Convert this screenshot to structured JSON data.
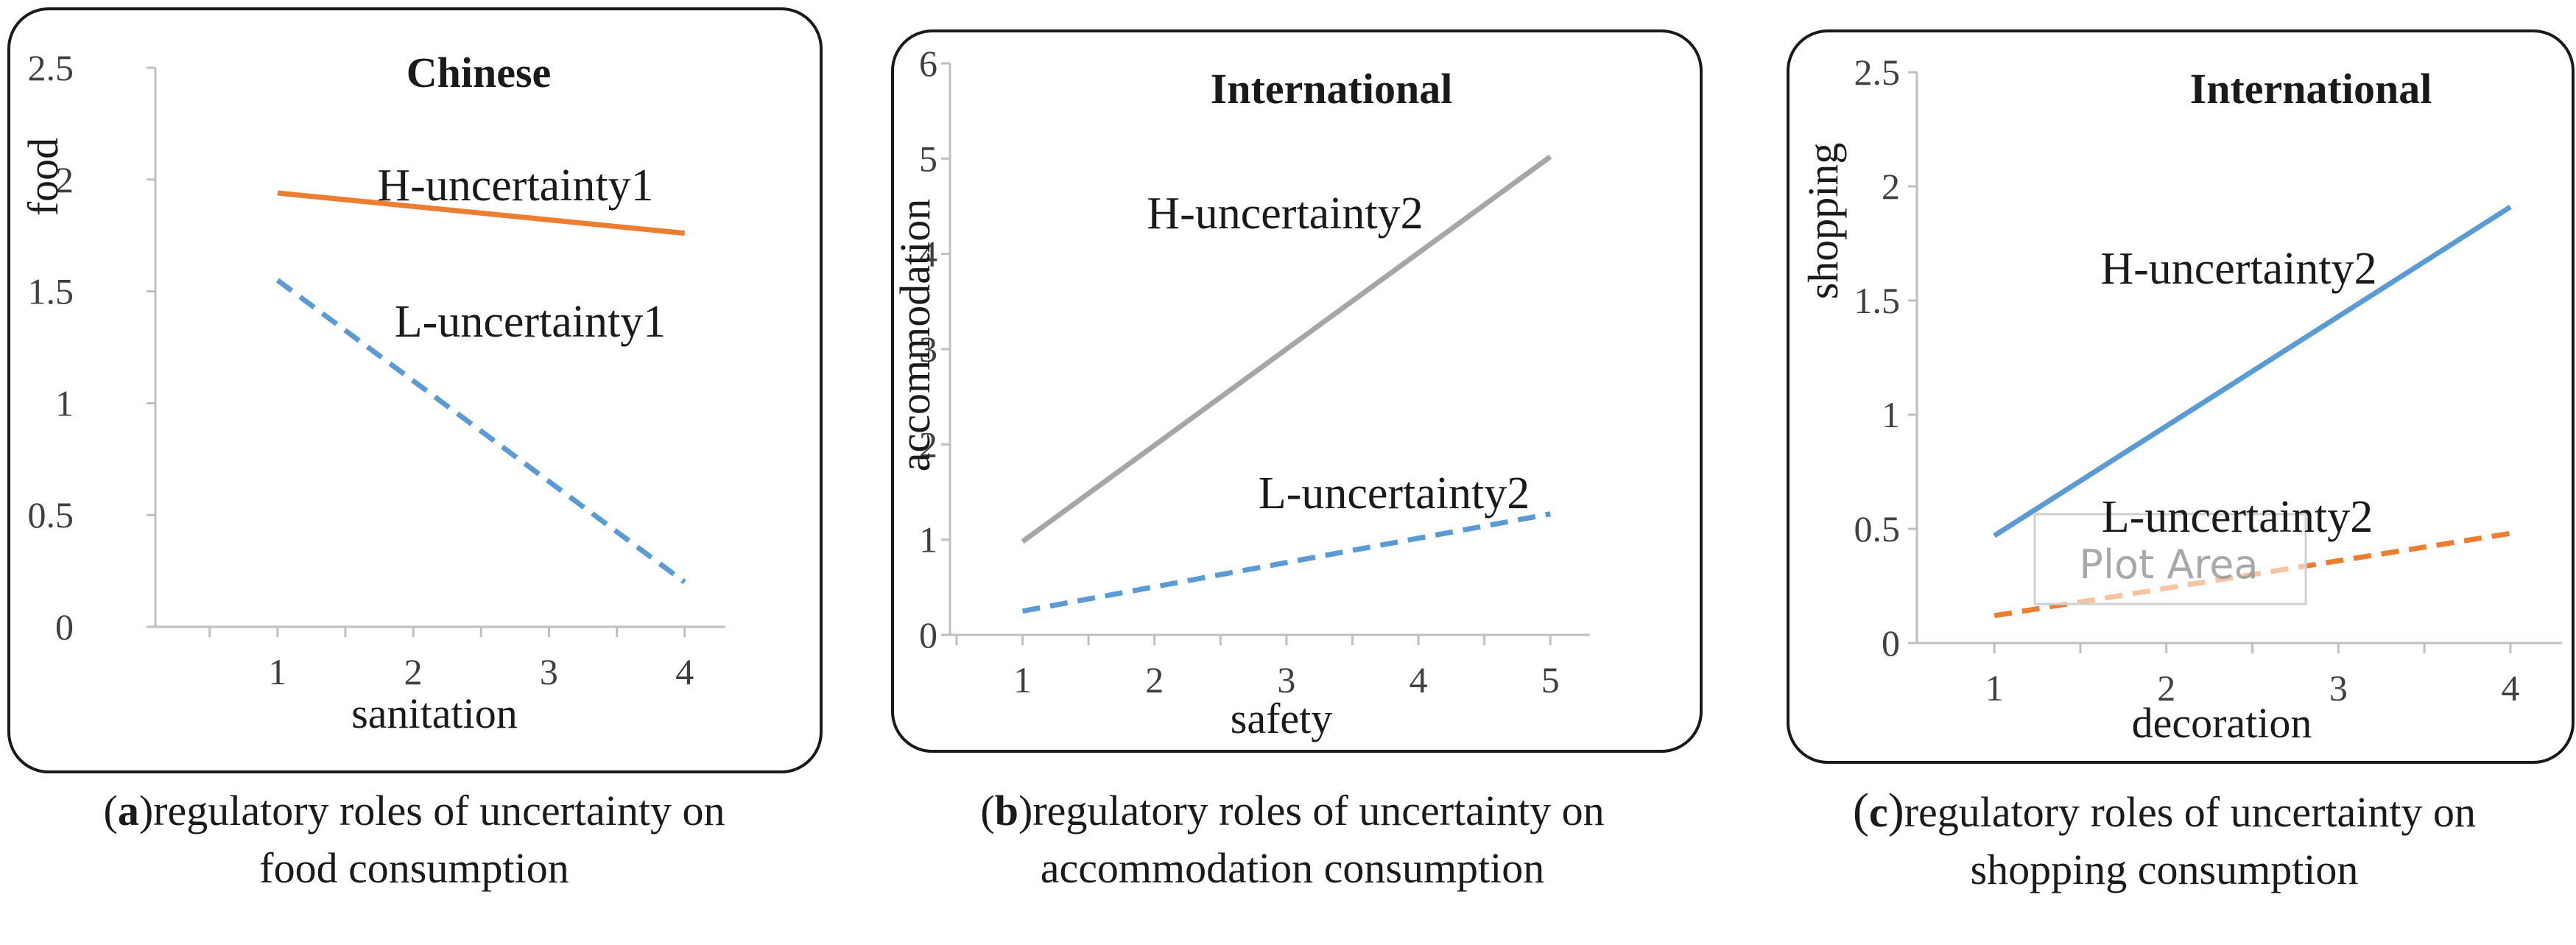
{
  "chart_data": [
    {
      "type": "line",
      "title": "Chinese",
      "xlabel": "sanitation",
      "ylabel": "food",
      "xlim": [
        0.1,
        4.3
      ],
      "ylim": [
        0,
        2.5
      ],
      "xticks": [
        "1",
        "2",
        "3",
        "4"
      ],
      "yticks": [
        "0",
        "0.5",
        "1",
        "1.5",
        "2",
        "2.5"
      ],
      "grid": false,
      "series": [
        {
          "name": "H-uncertainty1",
          "x": [
            1,
            4
          ],
          "y": [
            1.94,
            1.76
          ],
          "color": "#ed7d31",
          "dash": "solid"
        },
        {
          "name": "L-uncertainty1",
          "x": [
            1,
            4
          ],
          "y": [
            1.55,
            0.2
          ],
          "color": "#5b9bd5",
          "dash": "dashed"
        }
      ],
      "caption_label": "a",
      "caption_text": "regulatory roles of uncertainty on",
      "caption_line2": "food consumption"
    },
    {
      "type": "line",
      "title": "International",
      "xlabel": "safety",
      "ylabel": "accommodation",
      "xlim": [
        0.45,
        5.3
      ],
      "ylim": [
        0,
        6
      ],
      "xticks": [
        "1",
        "2",
        "3",
        "4",
        "5"
      ],
      "yticks": [
        "0",
        "1",
        "2",
        "3",
        "4",
        "5",
        "6"
      ],
      "grid": false,
      "series": [
        {
          "name": "H-uncertainty2",
          "x": [
            1,
            5
          ],
          "y": [
            0.98,
            5.02
          ],
          "color": "#a6a6a6",
          "dash": "solid"
        },
        {
          "name": "L-uncertainty2",
          "x": [
            1,
            5
          ],
          "y": [
            0.25,
            1.27
          ],
          "color": "#5b9bd5",
          "dash": "dashed"
        }
      ],
      "caption_label": "b",
      "caption_text": "regulatory roles of uncertainty on",
      "caption_line2": "accommodation consumption"
    },
    {
      "type": "line",
      "title": "International",
      "xlabel": "decoration",
      "ylabel": "shopping",
      "xlim": [
        0.55,
        4.3
      ],
      "ylim": [
        0,
        2.5
      ],
      "xticks": [
        "1",
        "2",
        "3",
        "4"
      ],
      "yticks": [
        "0",
        "0.5",
        "1",
        "1.5",
        "2",
        "2.5"
      ],
      "grid": false,
      "series": [
        {
          "name": "H-uncertainty2",
          "x": [
            1,
            4
          ],
          "y": [
            0.47,
            1.91
          ],
          "color": "#5b9bd5",
          "dash": "solid"
        },
        {
          "name": "L-uncertainty2",
          "x": [
            1,
            4
          ],
          "y": [
            0.12,
            0.48
          ],
          "color": "#ed7d31",
          "dash": "dashed"
        }
      ],
      "overlay_label": "Plot Area",
      "caption_label": "c",
      "caption_text": "regulatory roles of uncertainty on",
      "caption_line2": "shopping consumption"
    }
  ]
}
